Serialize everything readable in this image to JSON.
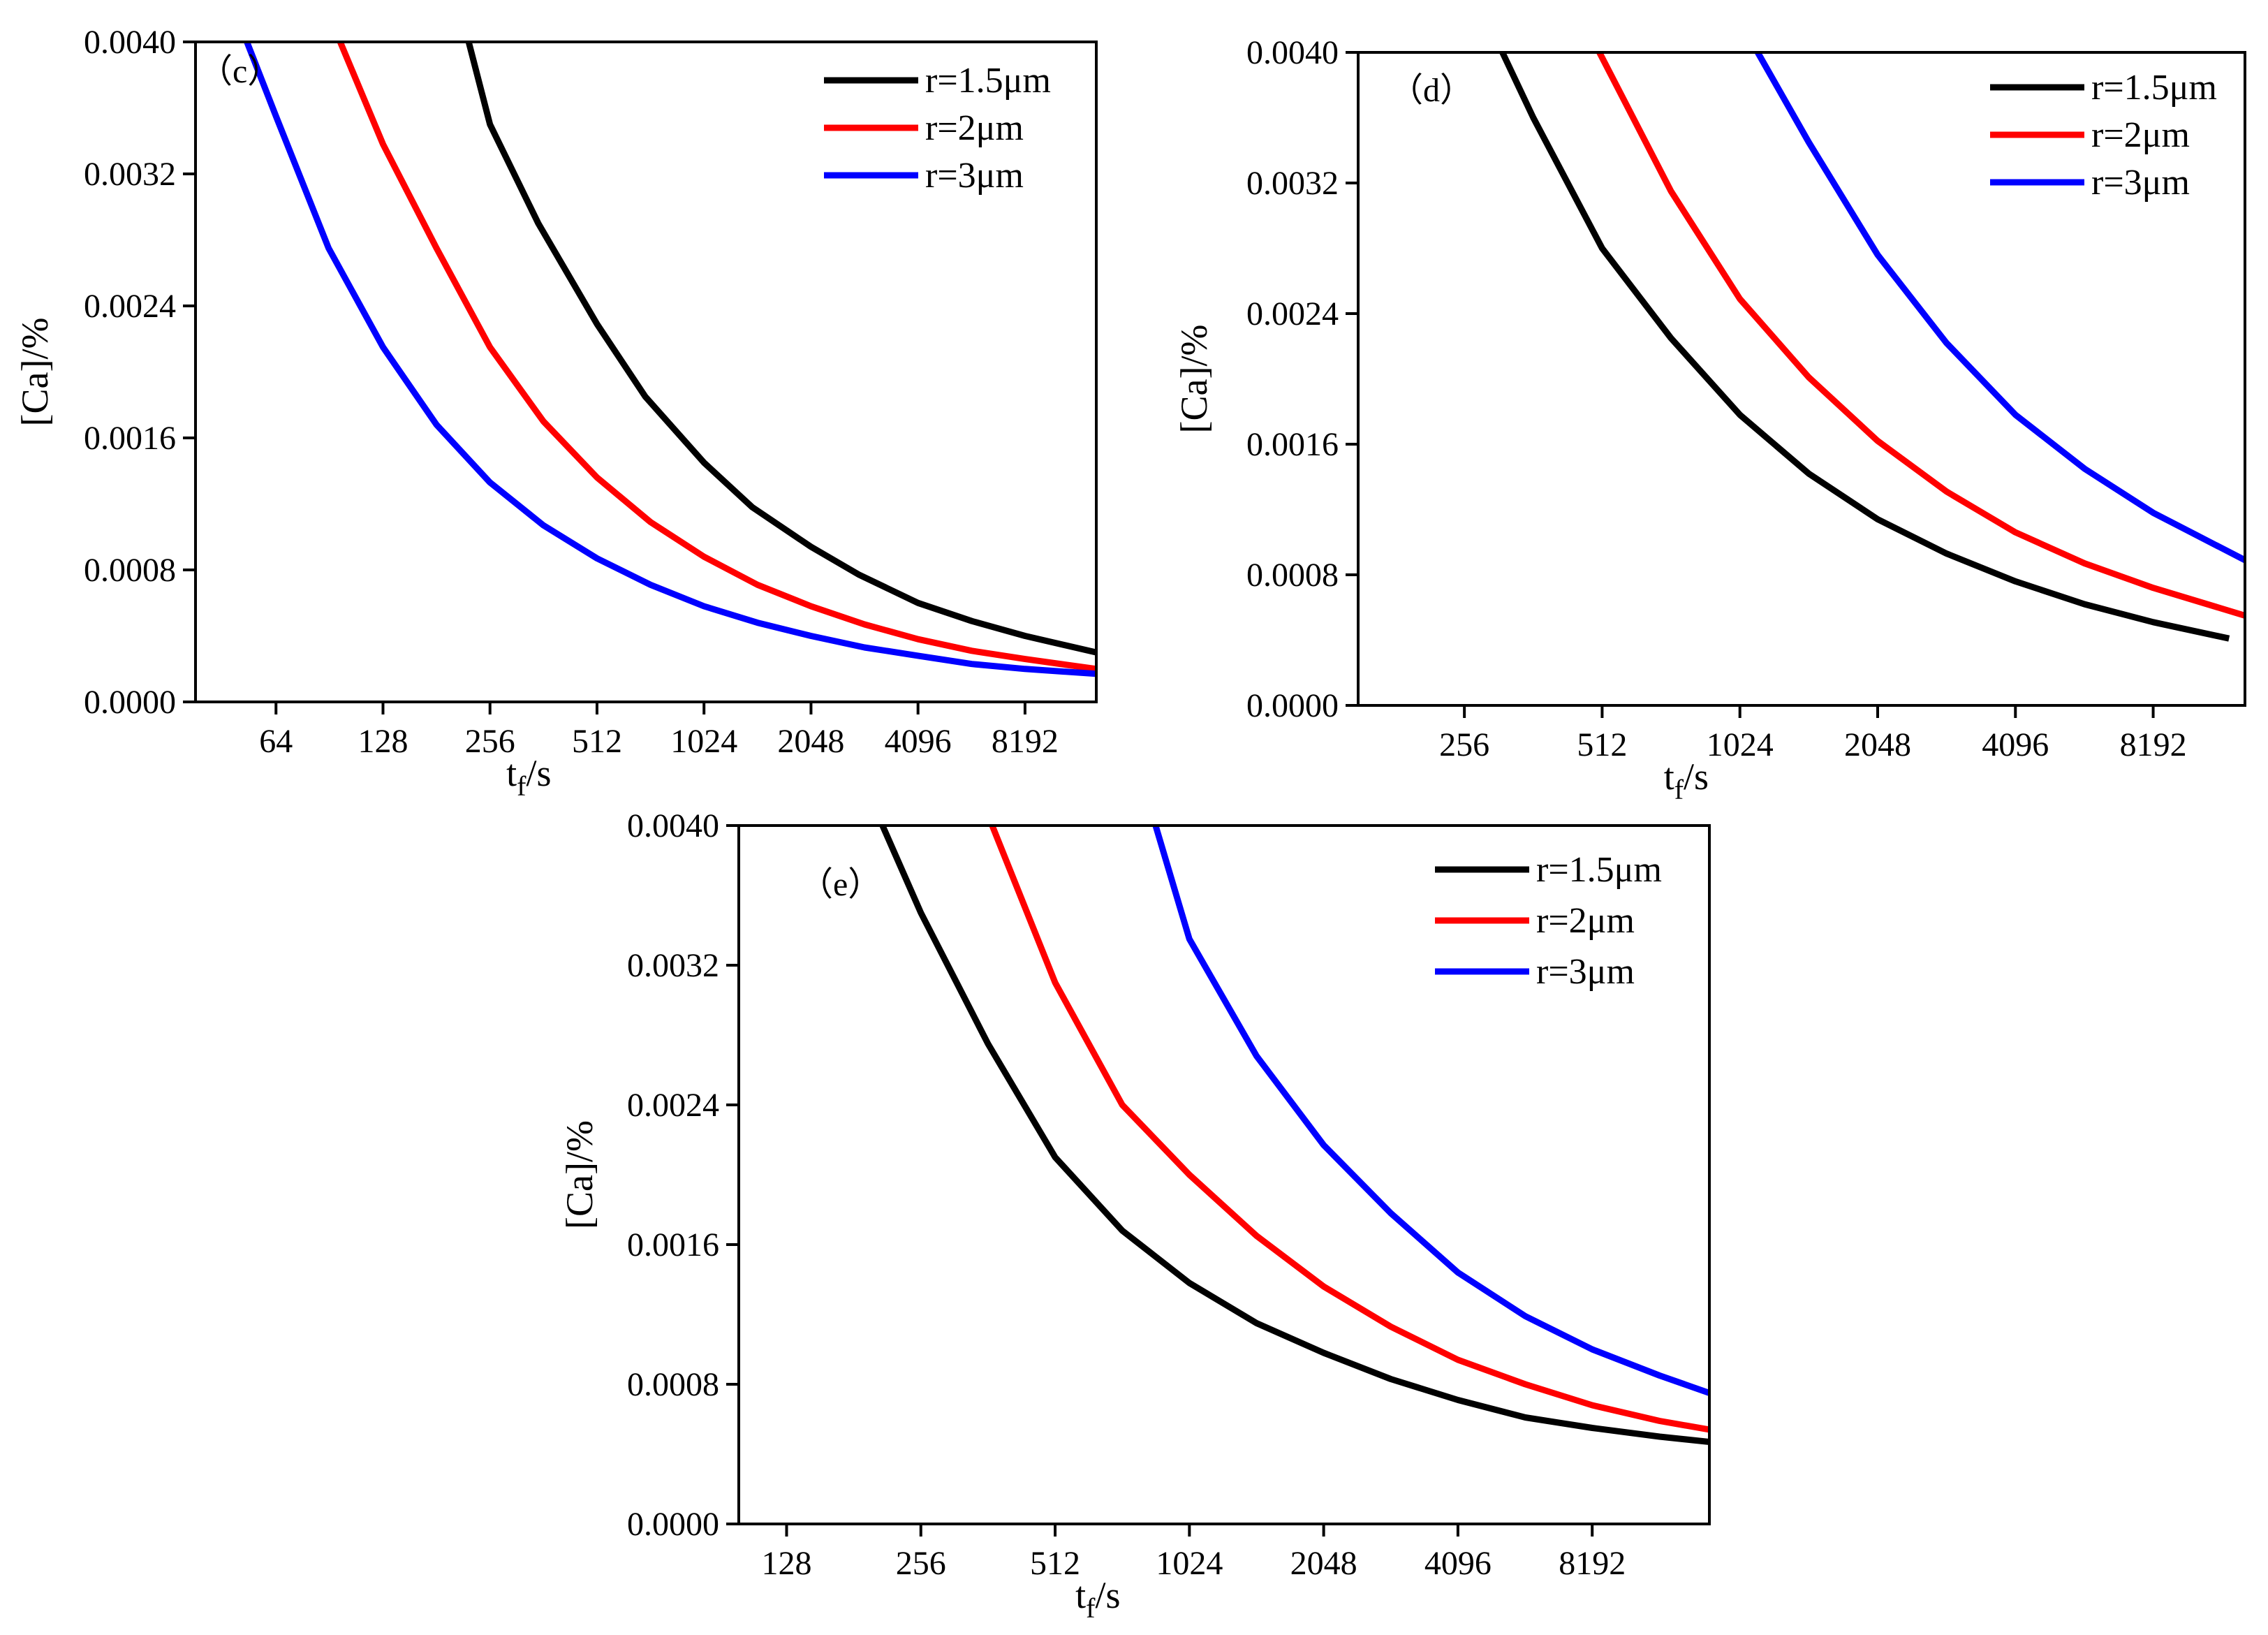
{
  "figure": {
    "series_colors": [
      "#000000",
      "#ff0000",
      "#0000ff"
    ]
  },
  "chart_data": [
    {
      "type": "line",
      "panel_label": "（c）",
      "xlabel": "t",
      "xlabel_sub": "f",
      "xlabel_unit": "/s",
      "ylabel": "[Ca]/%",
      "x_scale": "log2",
      "xlim": [
        38,
        13000
      ],
      "xticks": [
        64,
        128,
        256,
        512,
        1024,
        2048,
        4096,
        8192
      ],
      "ylim": [
        0,
        0.004
      ],
      "yticks": [
        "0.0000",
        "0.0008",
        "0.0016",
        "0.0024",
        "0.0032",
        "0.0040"
      ],
      "legend_position": "top-right",
      "series": [
        {
          "name": "r=1.5μm",
          "color": "#000000",
          "x": [
            223,
            256,
            350,
            512,
            700,
            1024,
            1400,
            2048,
            2800,
            4096,
            5800,
            8192,
            13000
          ],
          "y": [
            0.004,
            0.0035,
            0.0029,
            0.00229,
            0.00185,
            0.00145,
            0.00118,
            0.00094,
            0.00077,
            0.0006,
            0.00049,
            0.0004,
            0.0003
          ]
        },
        {
          "name": "r=2μm",
          "color": "#ff0000",
          "x": [
            97,
            128,
            181,
            256,
            362,
            512,
            724,
            1024,
            1448,
            2048,
            2896,
            4096,
            5800,
            8192,
            13000
          ],
          "y": [
            0.004,
            0.00338,
            0.00275,
            0.00215,
            0.0017,
            0.00136,
            0.00109,
            0.00088,
            0.00071,
            0.00058,
            0.00047,
            0.00038,
            0.00031,
            0.00026,
            0.0002
          ]
        },
        {
          "name": "r=3μm",
          "color": "#0000ff",
          "x": [
            53,
            64,
            90,
            128,
            181,
            256,
            362,
            512,
            724,
            1024,
            1448,
            2048,
            2896,
            4096,
            5800,
            8192,
            13000
          ],
          "y": [
            0.004,
            0.00355,
            0.00275,
            0.00215,
            0.00168,
            0.00133,
            0.00107,
            0.00087,
            0.00071,
            0.00058,
            0.00048,
            0.0004,
            0.00033,
            0.00028,
            0.00023,
            0.0002,
            0.00017
          ]
        }
      ]
    },
    {
      "type": "line",
      "panel_label": "（d）",
      "xlabel": "t",
      "xlabel_sub": "f",
      "xlabel_unit": "/s",
      "ylabel": "[Ca]/%",
      "x_scale": "log2",
      "xlim": [
        150,
        13000
      ],
      "xticks": [
        256,
        512,
        1024,
        2048,
        4096,
        8192
      ],
      "ylim": [
        0,
        0.004
      ],
      "yticks": [
        "0.0000",
        "0.0008",
        "0.0016",
        "0.0024",
        "0.0032",
        "0.0040"
      ],
      "legend_position": "top-right",
      "series": [
        {
          "name": "r=1.5μm",
          "color": "#000000",
          "x": [
            310,
            362,
            512,
            724,
            1024,
            1448,
            2048,
            2896,
            4096,
            5800,
            8192,
            12000
          ],
          "y": [
            0.004,
            0.0036,
            0.0028,
            0.00225,
            0.00178,
            0.00142,
            0.00114,
            0.00093,
            0.00076,
            0.00062,
            0.00051,
            0.00041
          ]
        },
        {
          "name": "r=2μm",
          "color": "#ff0000",
          "x": [
            505,
            724,
            1024,
            1448,
            2048,
            2896,
            4096,
            5800,
            8192,
            13000
          ],
          "y": [
            0.004,
            0.00315,
            0.00249,
            0.00201,
            0.00162,
            0.00131,
            0.00106,
            0.00087,
            0.00072,
            0.00055
          ]
        },
        {
          "name": "r=3μm",
          "color": "#0000ff",
          "x": [
            1120,
            1448,
            2048,
            2896,
            4096,
            5800,
            8192,
            13000
          ],
          "y": [
            0.004,
            0.00345,
            0.00276,
            0.00222,
            0.00178,
            0.00145,
            0.00118,
            0.00089
          ]
        }
      ]
    },
    {
      "type": "line",
      "panel_label": "（e）",
      "xlabel": "t",
      "xlabel_sub": "f",
      "xlabel_unit": "/s",
      "ylabel": "[Ca]/%",
      "x_scale": "log2",
      "xlim": [
        100,
        15000
      ],
      "xticks": [
        128,
        256,
        512,
        1024,
        2048,
        4096,
        8192
      ],
      "ylim": [
        0,
        0.004
      ],
      "yticks": [
        "0.0000",
        "0.0008",
        "0.0016",
        "0.0024",
        "0.0032",
        "0.0040"
      ],
      "legend_position": "top-right",
      "series": [
        {
          "name": "r=1.5μm",
          "color": "#000000",
          "x": [
            210,
            256,
            362,
            512,
            724,
            1024,
            1448,
            2048,
            2896,
            4096,
            5800,
            8192,
            11600,
            15000
          ],
          "y": [
            0.004,
            0.0035,
            0.00275,
            0.0021,
            0.00168,
            0.00138,
            0.00115,
            0.00098,
            0.00083,
            0.00071,
            0.00061,
            0.00055,
            0.0005,
            0.00047
          ]
        },
        {
          "name": "r=2μm",
          "color": "#ff0000",
          "x": [
            370,
            512,
            724,
            1024,
            1448,
            2048,
            2896,
            4096,
            5800,
            8192,
            11600,
            15000
          ],
          "y": [
            0.004,
            0.0031,
            0.0024,
            0.002,
            0.00165,
            0.00136,
            0.00113,
            0.00094,
            0.0008,
            0.00068,
            0.00059,
            0.00054
          ]
        },
        {
          "name": "r=3μm",
          "color": "#0000ff",
          "x": [
            860,
            1024,
            1448,
            2048,
            2896,
            4096,
            5800,
            8192,
            11600,
            15000
          ],
          "y": [
            0.004,
            0.00335,
            0.00268,
            0.00217,
            0.00178,
            0.00144,
            0.00119,
            0.001,
            0.00085,
            0.00075
          ]
        }
      ]
    }
  ]
}
